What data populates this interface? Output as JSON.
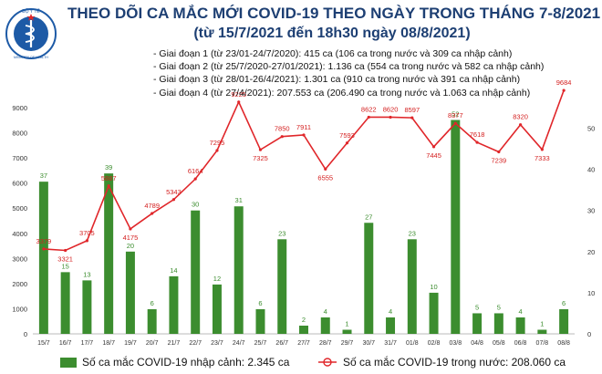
{
  "header": {
    "title": "THEO DÕI CA MẮC MỚI COVID-19 THEO NGÀY TRONG THÁNG 7-8/2021",
    "subtitle": "(từ 15/7/2021 đến 18h30 ngày 08/8/2021)",
    "logo_top_text": "BỘ Y TẾ",
    "logo_bottom_text": "MINISTRY OF HEALTH"
  },
  "stages": [
    "- Giai đoạn 1 (từ 23/01-24/7/2020): 415 ca (106 ca trong nước và 309 ca nhập cảnh)",
    "- Giai đoạn 2 (từ 25/7/2020-27/01/2021): 1.136 ca (554 ca trong nước và 582 ca nhập cảnh)",
    "- Giai đoạn 3 (từ 28/01-26/4/2021): 1.301 ca (910 ca trong nước và 391 ca nhập cảnh)",
    "- Giai đoạn 4 (từ 27/4/2021): 207.553 ca (206.490 ca trong nước và 1.063 ca nhập cảnh)"
  ],
  "legend": {
    "bars": "Số ca mắc COVID-19 nhập cảnh: 2.345 ca",
    "line": "Số ca mắc COVID-19 trong nước: 208.060 ca"
  },
  "colors": {
    "bar": "#3c8d2f",
    "line": "#e0262a",
    "title": "#1d3f73",
    "bar_label": "#3c8d2f",
    "line_label": "#d42020"
  },
  "chart_data": {
    "type": "bar+line",
    "categories": [
      "15/7",
      "16/7",
      "17/7",
      "18/7",
      "19/7",
      "20/7",
      "21/7",
      "22/7",
      "23/7",
      "24/7",
      "25/7",
      "26/7",
      "27/7",
      "28/7",
      "29/7",
      "30/7",
      "31/7",
      "01/8",
      "02/8",
      "03/8",
      "04/8",
      "05/8",
      "06/8",
      "07/8",
      "08/8"
    ],
    "series": [
      {
        "name": "Số ca mắc COVID-19 nhập cảnh: 2.345 ca",
        "type": "bar",
        "axis": "right",
        "values": [
          37,
          15,
          13,
          39,
          20,
          6,
          14,
          30,
          12,
          31,
          6,
          23,
          2,
          4,
          1,
          27,
          4,
          23,
          10,
          52,
          5,
          5,
          4,
          1,
          6
        ]
      },
      {
        "name": "Số ca mắc COVID-19 trong nước: 208.060 ca",
        "type": "line",
        "axis": "left",
        "values": [
          3379,
          3321,
          3705,
          5887,
          4175,
          4789,
          5343,
          6164,
          7295,
          9225,
          7325,
          7850,
          7911,
          6555,
          7593,
          8622,
          8620,
          8597,
          7445,
          8377,
          7618,
          7239,
          8320,
          7333,
          9684
        ]
      }
    ],
    "y_left": {
      "min": 0,
      "max": 9000,
      "ticks": [
        0,
        1000,
        2000,
        3000,
        4000,
        5000,
        6000,
        7000,
        8000,
        9000
      ]
    },
    "y_right": {
      "min": 0,
      "max": 55,
      "ticks": [
        0,
        10,
        20,
        30,
        40,
        50
      ]
    },
    "legend_position": "bottom",
    "grid": false
  }
}
